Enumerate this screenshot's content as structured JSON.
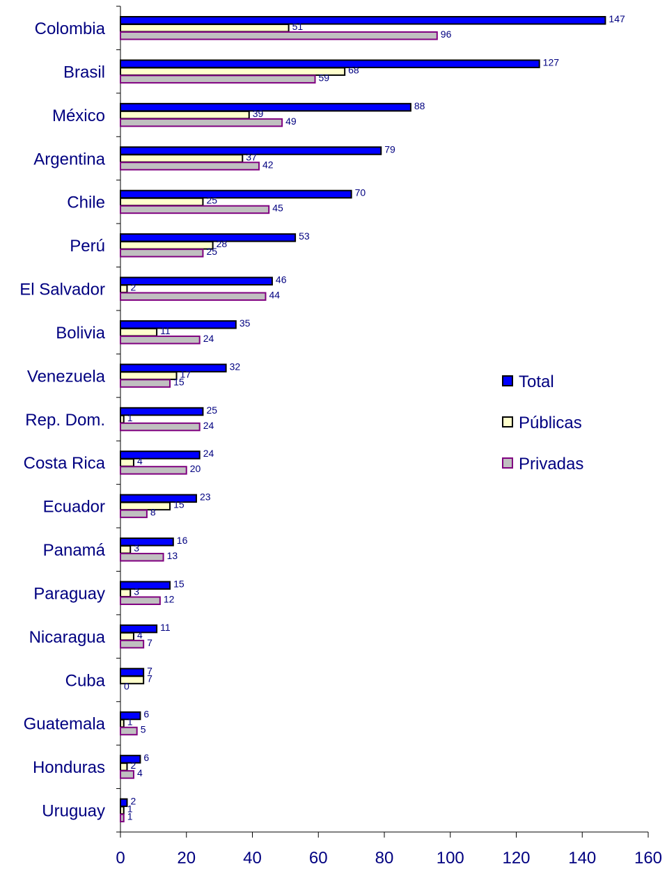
{
  "chart_data": {
    "type": "bar",
    "orientation": "horizontal",
    "categories": [
      "Colombia",
      "Brasil",
      "México",
      "Argentina",
      "Chile",
      "Perú",
      "El Salvador",
      "Bolivia",
      "Venezuela",
      "Rep. Dom.",
      "Costa Rica",
      "Ecuador",
      "Panamá",
      "Paraguay",
      "Nicaragua",
      "Cuba",
      "Guatemala",
      "Honduras",
      "Uruguay"
    ],
    "series": [
      {
        "name": "Total",
        "color": "#0000ff",
        "border": "#000000",
        "values": [
          147,
          127,
          88,
          79,
          70,
          53,
          46,
          35,
          32,
          25,
          24,
          23,
          16,
          15,
          11,
          7,
          6,
          6,
          2
        ]
      },
      {
        "name": "Públicas",
        "color": "#ffffcc",
        "border": "#000000",
        "values": [
          51,
          68,
          39,
          37,
          25,
          28,
          2,
          11,
          17,
          1,
          4,
          15,
          3,
          3,
          4,
          7,
          1,
          2,
          1
        ]
      },
      {
        "name": "Privadas",
        "color": "#c0c0c0",
        "border": "#800080",
        "values": [
          96,
          59,
          49,
          42,
          45,
          25,
          44,
          24,
          15,
          24,
          20,
          8,
          13,
          12,
          7,
          0,
          5,
          4,
          1
        ]
      }
    ],
    "xlim": [
      0,
      160
    ],
    "x_ticks": [
      0,
      20,
      40,
      60,
      80,
      100,
      120,
      140,
      160
    ],
    "tick_labels": [
      "0",
      "20",
      "40",
      "60",
      "80",
      "100",
      "120",
      "140",
      "160"
    ],
    "data_labels": true,
    "grid": false,
    "legend_position": "right",
    "text_color": "#000080"
  }
}
